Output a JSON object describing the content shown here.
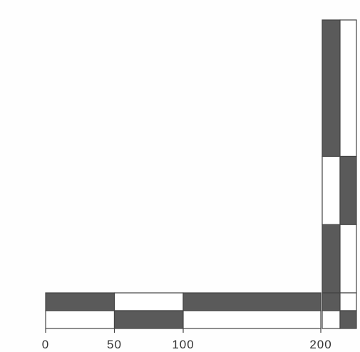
{
  "colors": {
    "dark": "#5a5a5a",
    "light": "#ffffff",
    "outline": "#444444",
    "text": "#333333"
  },
  "scale": {
    "ticks": [
      {
        "value": 0,
        "label": "0"
      },
      {
        "value": 50,
        "label": "50"
      },
      {
        "value": 100,
        "label": "100"
      },
      {
        "value": 200,
        "label": "200"
      }
    ]
  },
  "horizontal_bar": {
    "upper_segments": [
      {
        "from": 0,
        "to": 50,
        "fill": "dark"
      },
      {
        "from": 50,
        "to": 100,
        "fill": "light"
      },
      {
        "from": 100,
        "to": 200,
        "fill": "dark"
      }
    ],
    "lower_segments": [
      {
        "from": 0,
        "to": 50,
        "fill": "light"
      },
      {
        "from": 50,
        "to": 100,
        "fill": "dark"
      },
      {
        "from": 100,
        "to": 200,
        "fill": "light"
      }
    ]
  },
  "corner_squares": [
    {
      "column": "left",
      "row": "upper",
      "fill": "dark"
    },
    {
      "column": "right",
      "row": "upper",
      "fill": "light"
    },
    {
      "column": "left",
      "row": "lower",
      "fill": "light"
    },
    {
      "column": "right",
      "row": "lower",
      "fill": "dark"
    }
  ],
  "vertical_bar": {
    "left_segments": [
      {
        "from": 200,
        "to": 100,
        "fill": "dark"
      },
      {
        "from": 100,
        "to": 50,
        "fill": "light"
      },
      {
        "from": 50,
        "to": 0,
        "fill": "dark"
      }
    ],
    "right_segments": [
      {
        "from": 200,
        "to": 100,
        "fill": "light"
      },
      {
        "from": 100,
        "to": 50,
        "fill": "dark"
      },
      {
        "from": 50,
        "to": 0,
        "fill": "light"
      }
    ]
  }
}
